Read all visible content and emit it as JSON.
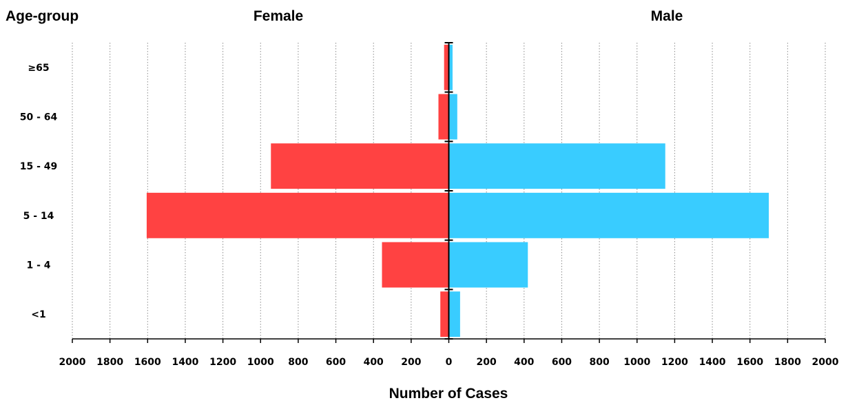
{
  "chart_data": {
    "type": "bar",
    "orientation": "horizontal-population-pyramid",
    "categories": [
      "≥65",
      "50 - 64",
      "15 - 49",
      "5 - 14",
      "1 - 4",
      "<1"
    ],
    "series": [
      {
        "name": "Female",
        "values": [
          25,
          55,
          945,
          1605,
          355,
          45
        ],
        "color": "#ff4242"
      },
      {
        "name": "Male",
        "values": [
          20,
          45,
          1150,
          1700,
          420,
          60
        ],
        "color": "#39ccff"
      }
    ],
    "ylabel": "Age-group",
    "xlabel": "Number of Cases",
    "xlim": [
      -2000,
      2000
    ],
    "xticks": [
      "2000",
      "1800",
      "1600",
      "1400",
      "1200",
      "1000",
      "800",
      "600",
      "400",
      "200",
      "0",
      "200",
      "400",
      "600",
      "800",
      "1000",
      "1200",
      "1400",
      "1600",
      "1800",
      "2000"
    ],
    "grid": "vertical-dotted"
  }
}
